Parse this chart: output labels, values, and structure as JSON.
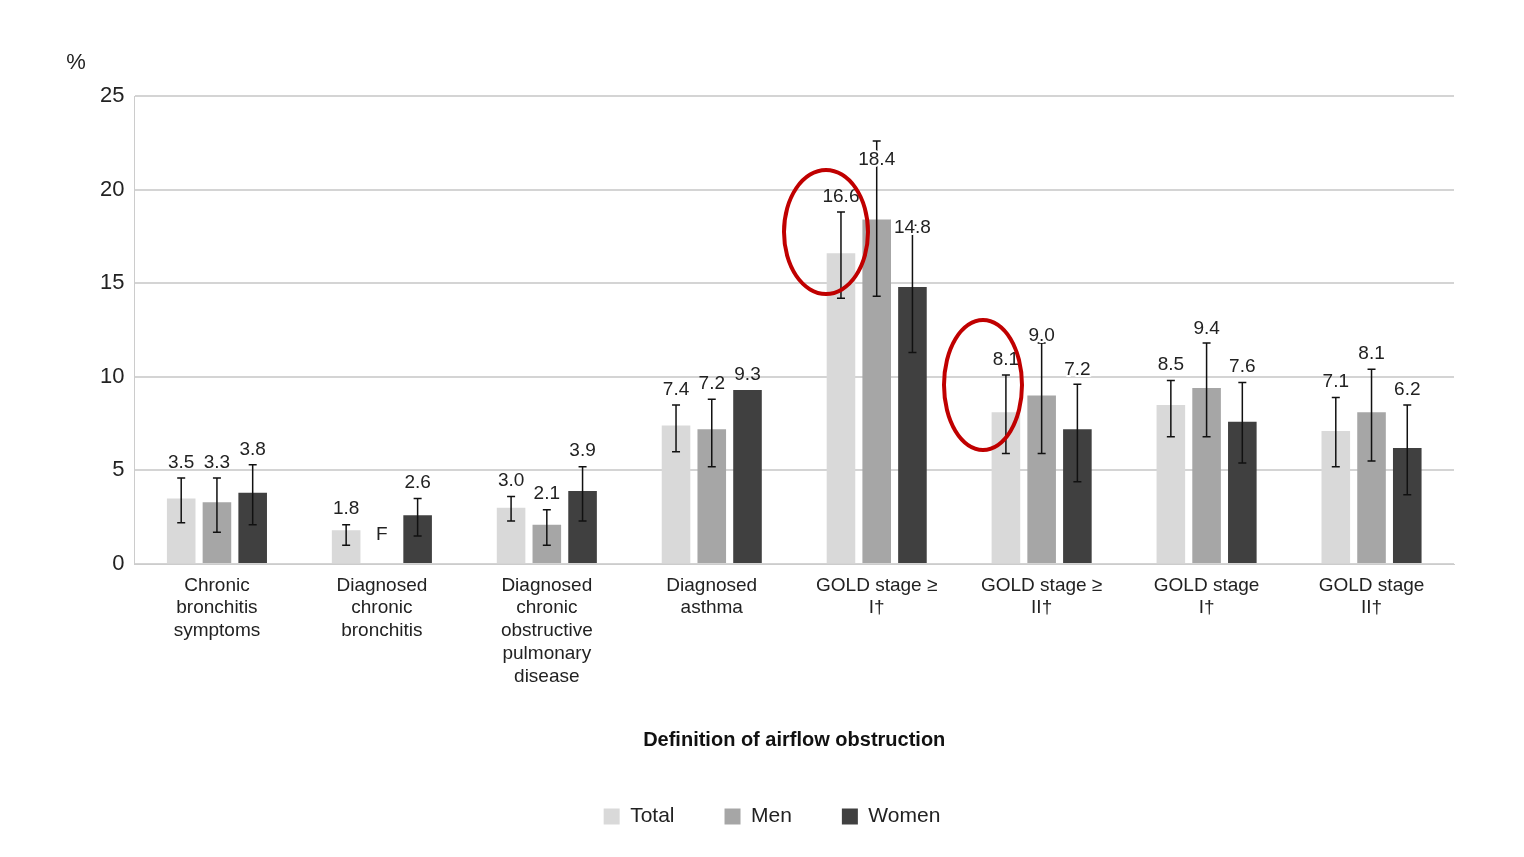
{
  "chart_data": {
    "type": "bar",
    "ylabel": "%",
    "xlabel": "Definition of airflow obstruction",
    "categories": [
      "Chronic bronchitis symptoms",
      "Diagnosed chronic bronchitis",
      "Diagnosed chronic obstructive pulmonary disease",
      "Diagnosed asthma",
      "GOLD stage ≥ I†",
      "GOLD stage ≥ II†",
      "GOLD stage I†",
      "GOLD stage II†"
    ],
    "series": [
      {
        "name": "Total",
        "color": "#d9d9d9",
        "values": [
          3.5,
          1.8,
          3.0,
          7.4,
          16.6,
          8.1,
          8.5,
          7.1
        ],
        "errors": [
          [
            2.2,
            4.6
          ],
          [
            1.0,
            2.1
          ],
          [
            2.3,
            3.6
          ],
          [
            6.0,
            8.5
          ],
          [
            14.2,
            18.8
          ],
          [
            5.9,
            10.1
          ],
          [
            6.8,
            9.8
          ],
          [
            5.2,
            8.9
          ]
        ],
        "value_labels": [
          "3.5",
          "1.8",
          "3.0",
          "7.4",
          "16.6",
          "8.1",
          "8.5",
          "7.1"
        ]
      },
      {
        "name": "Men",
        "color": "#a6a6a6",
        "values": [
          3.3,
          null,
          2.1,
          7.2,
          18.4,
          9.0,
          9.4,
          8.1
        ],
        "errors": [
          [
            1.7,
            4.6
          ],
          null,
          [
            1.0,
            2.9
          ],
          [
            5.2,
            8.8
          ],
          [
            14.3,
            22.6
          ],
          [
            5.9,
            11.8
          ],
          [
            6.8,
            11.8
          ],
          [
            5.5,
            10.4
          ]
        ],
        "value_labels": [
          "3.3",
          "F",
          "2.1",
          "7.2",
          "18.4",
          "9.0",
          "9.4",
          "8.1"
        ]
      },
      {
        "name": "Women",
        "color": "#404040",
        "values": [
          3.8,
          2.6,
          3.9,
          9.3,
          14.8,
          7.2,
          7.6,
          6.2
        ],
        "errors": [
          [
            2.1,
            5.3
          ],
          [
            1.5,
            3.5
          ],
          [
            2.3,
            5.2
          ],
          null,
          [
            11.3,
            18.1
          ],
          [
            4.4,
            9.6
          ],
          [
            5.4,
            9.7
          ],
          [
            3.7,
            8.5
          ]
        ],
        "value_labels": [
          "3.8",
          "2.6",
          "3.9",
          "9.3",
          "14.8",
          "7.2",
          "7.6",
          "6.2"
        ]
      }
    ],
    "ylim": [
      0,
      25
    ],
    "yticks": [
      0,
      5,
      10,
      15,
      20,
      25
    ],
    "grid": "y",
    "legend": "bottom"
  }
}
